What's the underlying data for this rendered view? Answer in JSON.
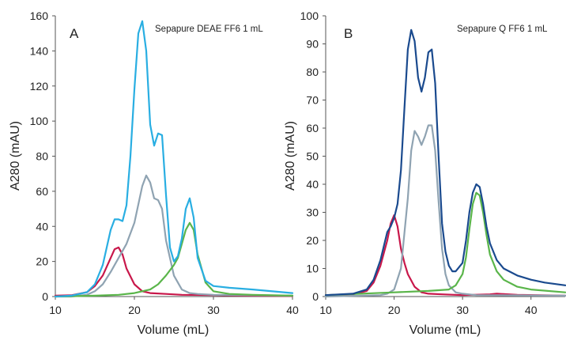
{
  "chart_data": [
    {
      "type": "line",
      "panel_letter": "A",
      "annotation": "Sepapure DEAE FF6 1 mL",
      "xlabel": "Volume (mL)",
      "ylabel": "A280 (mAU)",
      "xlim": [
        10,
        40
      ],
      "ylim": [
        0,
        160
      ],
      "xticks": [
        10,
        20,
        30,
        40
      ],
      "yticks": [
        0,
        20,
        40,
        60,
        80,
        100,
        120,
        140,
        160
      ],
      "grid": false,
      "series": [
        {
          "color": "#c8174a",
          "x": [
            10,
            12,
            14,
            15,
            16,
            17,
            17.5,
            18,
            18.5,
            19,
            20,
            21,
            22,
            24,
            26,
            30,
            34,
            40
          ],
          "y": [
            0.5,
            0.7,
            2.5,
            6,
            12,
            22,
            27,
            28,
            24,
            16,
            7,
            3,
            2,
            1.5,
            1,
            0.8,
            0.5,
            0.3
          ]
        },
        {
          "color": "#8fa3b2",
          "x": [
            10,
            12,
            14,
            15,
            16,
            17,
            18,
            19,
            20,
            21,
            21.5,
            22,
            22.5,
            23,
            23.5,
            24,
            25,
            26,
            27,
            28,
            30,
            40
          ],
          "y": [
            0,
            0,
            1,
            3,
            7,
            14,
            22,
            30,
            42,
            63,
            69,
            65,
            56,
            55,
            50,
            32,
            12,
            4,
            2,
            1.5,
            1,
            0.5
          ]
        },
        {
          "color": "#5ab54a",
          "x": [
            10,
            15,
            18,
            20,
            22,
            23,
            24,
            25,
            25.5,
            26,
            26.5,
            27,
            27.5,
            28,
            29,
            30,
            32,
            35,
            40
          ],
          "y": [
            0,
            0.5,
            1,
            2,
            4,
            7,
            12,
            18,
            22,
            30,
            38,
            42,
            38,
            24,
            8,
            3,
            1.5,
            1,
            0.5
          ]
        },
        {
          "color": "#29aee2",
          "x": [
            10,
            12,
            14,
            15,
            16,
            17,
            17.5,
            18,
            18.5,
            19,
            19.5,
            20,
            20.5,
            21,
            21.5,
            22,
            22.5,
            23,
            23.5,
            24,
            24.5,
            25,
            25.5,
            26,
            26.5,
            27,
            27.5,
            28,
            29,
            30,
            32,
            35,
            40
          ],
          "y": [
            0,
            0.5,
            2.5,
            7,
            18,
            38,
            44,
            44,
            43,
            52,
            80,
            118,
            150,
            157,
            140,
            98,
            86,
            93,
            92,
            58,
            28,
            20,
            23,
            33,
            50,
            56,
            45,
            22,
            9,
            6,
            5,
            4,
            2
          ]
        }
      ]
    },
    {
      "type": "line",
      "panel_letter": "B",
      "annotation": "Sepapure Q FF6 1 mL",
      "xlabel": "Volume (mL)",
      "ylabel": "A280 (mAU)",
      "xlim": [
        10,
        45
      ],
      "ylim": [
        0,
        100
      ],
      "xticks": [
        10,
        20,
        30,
        40
      ],
      "yticks": [
        0,
        10,
        20,
        30,
        40,
        50,
        60,
        70,
        80,
        90,
        100
      ],
      "grid": false,
      "series": [
        {
          "color": "#c8174a",
          "x": [
            10,
            14,
            16,
            17,
            18,
            19,
            19.5,
            20,
            20.5,
            21,
            21.5,
            22,
            23,
            24,
            25,
            27,
            30,
            34,
            35,
            38,
            45
          ],
          "y": [
            0.5,
            0.8,
            2,
            5,
            11,
            20,
            26,
            29,
            25,
            17,
            12,
            8,
            3.5,
            1.5,
            1,
            0.8,
            0.5,
            0.8,
            1,
            0.6,
            0.3
          ]
        },
        {
          "color": "#8fa3b2",
          "x": [
            10,
            18,
            19,
            20,
            21,
            22,
            22.5,
            23,
            23.5,
            24,
            24.5,
            25,
            25.5,
            26,
            26.5,
            27,
            27.5,
            28,
            29,
            30,
            32,
            45
          ],
          "y": [
            0,
            0.5,
            1,
            2.5,
            10,
            35,
            52,
            59,
            57,
            54,
            57,
            61,
            61,
            52,
            34,
            17,
            8,
            4,
            1.5,
            1,
            0.5,
            0.3
          ]
        },
        {
          "color": "#5ab54a",
          "x": [
            10,
            20,
            25,
            28,
            29,
            30,
            30.5,
            31,
            31.5,
            32,
            32.5,
            33,
            33.5,
            34,
            35,
            36,
            38,
            40,
            45
          ],
          "y": [
            0.5,
            1.5,
            2,
            2.5,
            4,
            8,
            14,
            24,
            33,
            37,
            36,
            30,
            22,
            15,
            9,
            6,
            3.5,
            2.5,
            1.5
          ]
        },
        {
          "color": "#1a4a8e",
          "x": [
            10,
            14,
            16,
            17,
            18,
            19,
            19.5,
            20,
            20.5,
            21,
            21.5,
            22,
            22.5,
            23,
            23.5,
            24,
            24.5,
            25,
            25.5,
            26,
            26.5,
            27,
            27.5,
            28,
            28.5,
            29,
            30,
            30.5,
            31,
            31.5,
            32,
            32.5,
            33,
            33.5,
            34,
            35,
            36,
            38,
            40,
            42,
            45
          ],
          "y": [
            0.5,
            1,
            2.5,
            6,
            13,
            23,
            25,
            28,
            33,
            45,
            67,
            88,
            95,
            91,
            78,
            73,
            78,
            87,
            88,
            76,
            50,
            26,
            16,
            11,
            9,
            9,
            12,
            20,
            30,
            37,
            40,
            39,
            33,
            25,
            19,
            13,
            10,
            7.5,
            6,
            5,
            4
          ]
        }
      ]
    }
  ]
}
